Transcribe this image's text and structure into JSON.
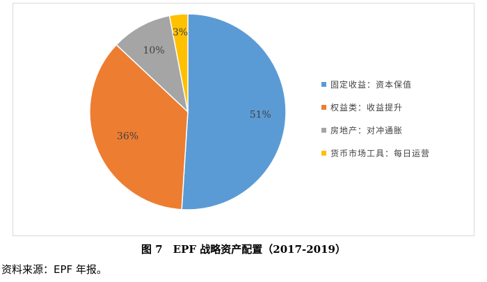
{
  "chart_data": {
    "type": "pie",
    "title": "",
    "categories": [
      "固定收益：资本保值",
      "权益类：收益提升",
      "房地产：对冲通胀",
      "货币市场工具：每日运营"
    ],
    "values": [
      51,
      36,
      10,
      3
    ],
    "data_labels": [
      "51%",
      "36%",
      "10%",
      "3%"
    ],
    "colors": [
      "#5B9BD5",
      "#ED7D31",
      "#A5A5A5",
      "#FFC000"
    ],
    "legend_position": "right"
  },
  "caption": "图 7　EPF 战略资产配置（2017-2019）",
  "source": "资料来源：EPF 年报。"
}
